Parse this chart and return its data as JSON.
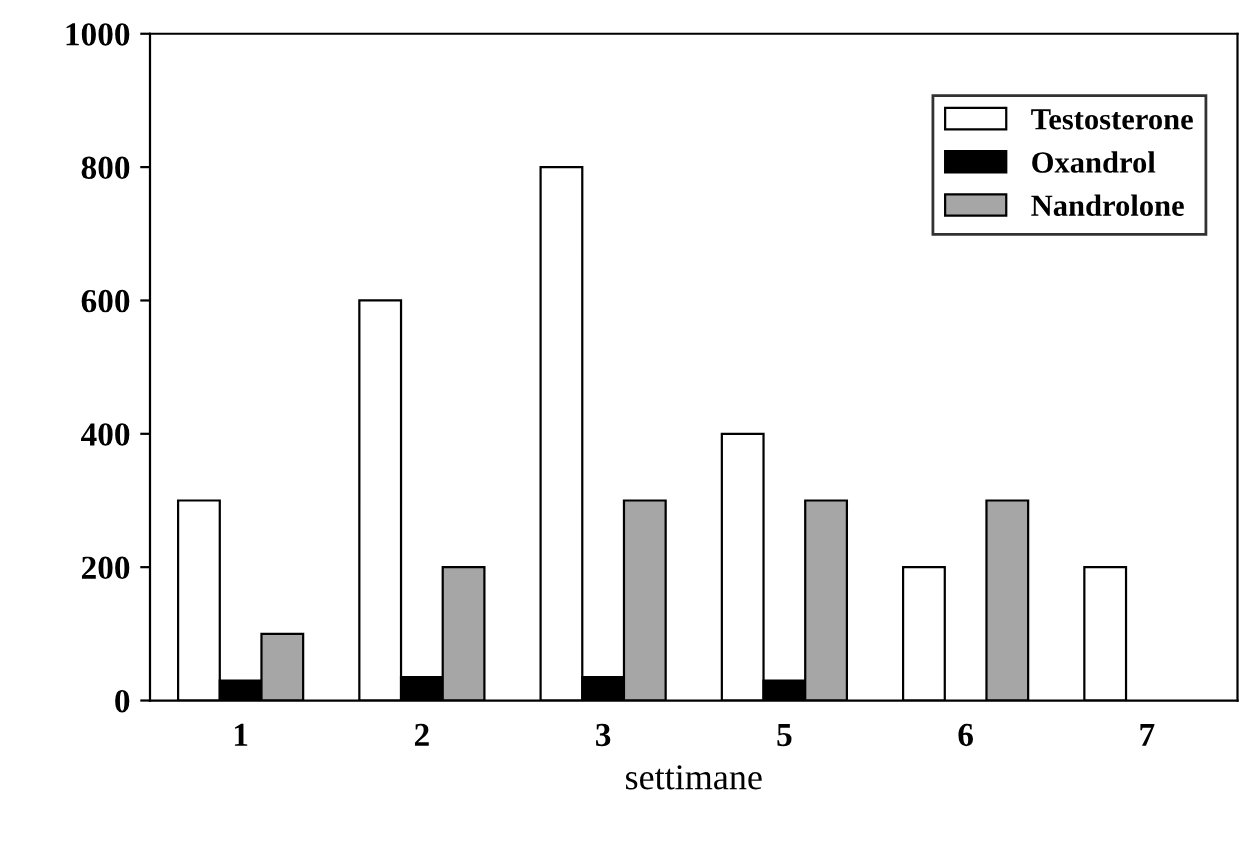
{
  "chart_data": {
    "type": "bar",
    "xlabel": "settimane",
    "categories": [
      "1",
      "2",
      "3",
      "5",
      "6",
      "7"
    ],
    "series": [
      {
        "name": "Testosterone",
        "color": "#ffffff",
        "values": [
          300,
          600,
          800,
          400,
          200,
          200
        ]
      },
      {
        "name": "Oxandrol",
        "color": "#000000",
        "values": [
          30,
          35,
          35,
          30,
          null,
          null
        ]
      },
      {
        "name": "Nandrolone",
        "color": "#a6a6a6",
        "values": [
          100,
          200,
          300,
          300,
          300,
          null
        ]
      }
    ],
    "ylim": [
      0,
      1000
    ],
    "yticks": [
      0,
      200,
      400,
      600,
      800,
      1000
    ],
    "grid": false,
    "legend": "top right"
  }
}
